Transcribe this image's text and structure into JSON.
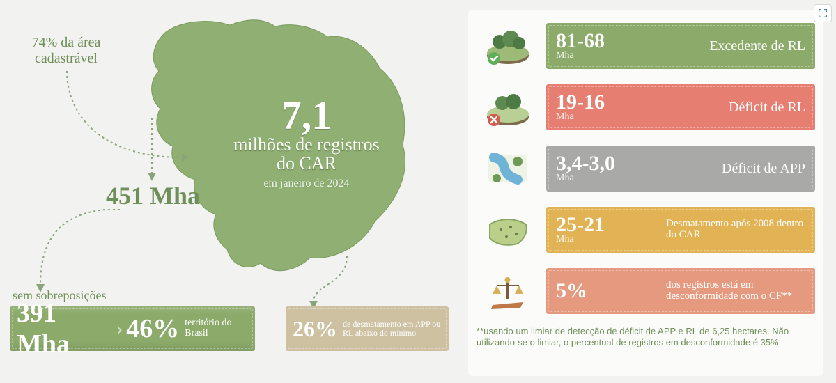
{
  "colors": {
    "background": "#f2f2f0",
    "panel": "#fbfbf9",
    "mapFill": "#8fb072",
    "textGreen": "#6f8f58",
    "barGreen": "#8cab6a",
    "barBeige": "#cdc1a2",
    "barRed": "#e67f72",
    "barGray": "#a9a9a7",
    "barOrange": "#e2b355",
    "barPeach": "#e59a7f"
  },
  "left": {
    "topLeftLabel": "74% da área cadastrável",
    "map": {
      "big": "7,1",
      "line1": "milhões de registros",
      "line2": "do CAR",
      "date": "em janeiro de 2024"
    },
    "area": "451 Mha",
    "sem": "sem sobreposições",
    "greenBox": {
      "v1": "391 Mha",
      "v2": "46%",
      "desc": "território do Brasil"
    },
    "beigeBox": {
      "pct": "26%",
      "desc": "de desmatamento em APP ou RL abaixo do mínimo"
    }
  },
  "right": {
    "rows": [
      {
        "color": "#8cab6a",
        "value": "81-68",
        "unit": "Mha",
        "label": "Excedente de RL",
        "icon": "forest-check"
      },
      {
        "color": "#e67f72",
        "value": "19-16",
        "unit": "Mha",
        "label": "Déficit de RL",
        "icon": "forest-x"
      },
      {
        "color": "#a9a9a7",
        "value": "3,4-3,0",
        "unit": "Mha",
        "label": "Déficit de APP",
        "icon": "river"
      },
      {
        "color": "#e2b355",
        "value": "25-21",
        "unit": "Mha",
        "label": "Desmatamento após 2008 dentro do CAR",
        "icon": "landplot",
        "small": true
      },
      {
        "color": "#e59a7f",
        "value": "5%",
        "unit": "",
        "label": "dos registros está em desconformidade com o CF**",
        "icon": "scales",
        "small": true
      }
    ],
    "footnote": "**usando um limiar de detecção de déficit de APP e RL de 6,25 hectares. Não utilizando-se o limiar, o percentual de registros em desconformidade é 35%"
  }
}
